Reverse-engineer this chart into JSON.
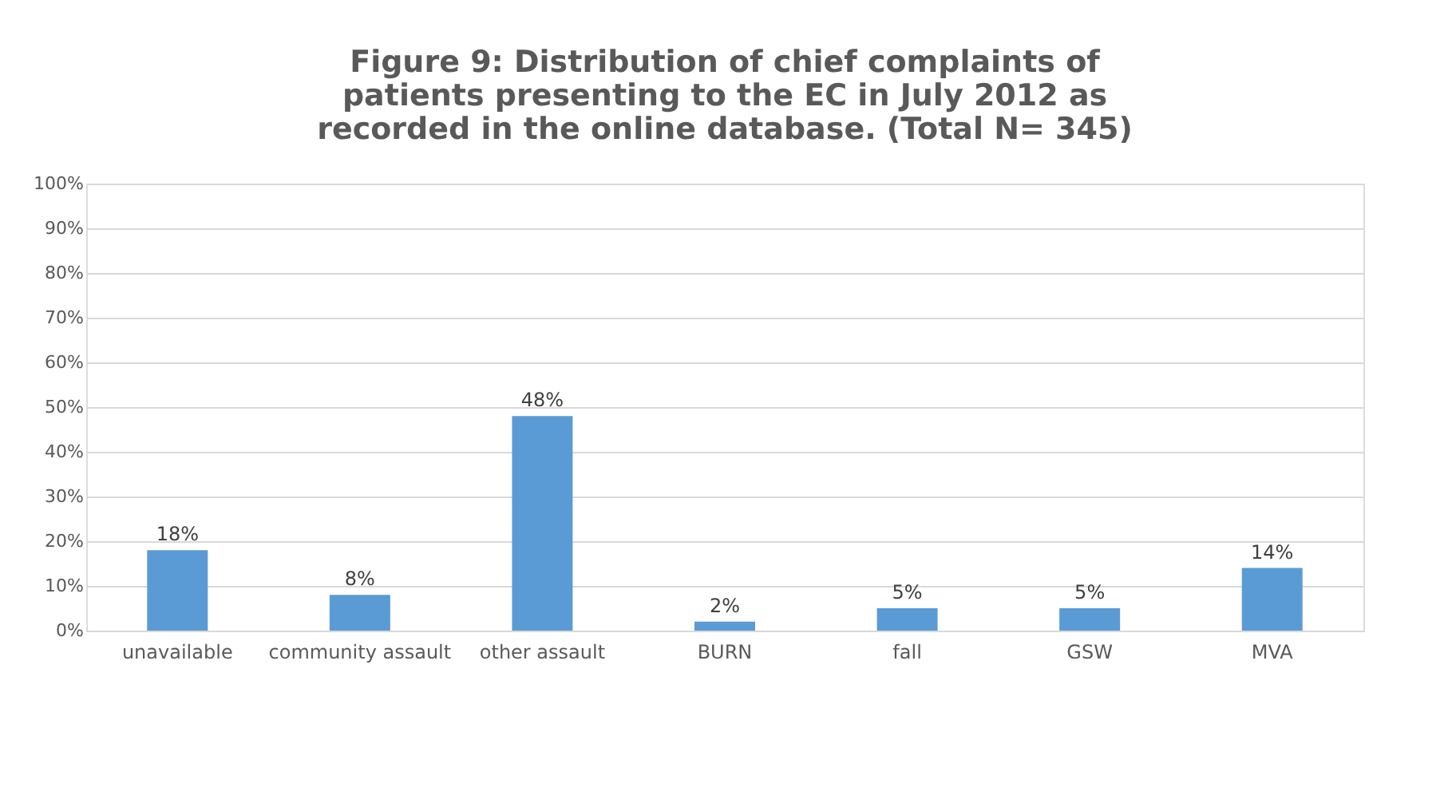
{
  "chart_data": {
    "type": "bar",
    "title": "Figure 9: Distribution of chief complaints of patients presenting to the EC in July 2012 as recorded in the online database. (Total N= 345)",
    "categories": [
      "unavailable",
      "community assault",
      "other assault",
      "BURN",
      "fall",
      "GSW",
      "MVA"
    ],
    "values": [
      18,
      8,
      48,
      2,
      5,
      5,
      14
    ],
    "value_labels": [
      "18%",
      "8%",
      "48%",
      "2%",
      "5%",
      "5%",
      "14%"
    ],
    "color": "#5b9bd5",
    "ylim": [
      0,
      100
    ],
    "yticks": [
      {
        "value": 0,
        "label": "0%"
      },
      {
        "value": 10,
        "label": "10%"
      },
      {
        "value": 20,
        "label": "20%"
      },
      {
        "value": 30,
        "label": "30%"
      },
      {
        "value": 40,
        "label": "40%"
      },
      {
        "value": 50,
        "label": "50%"
      },
      {
        "value": 60,
        "label": "60%"
      },
      {
        "value": 70,
        "label": "70%"
      },
      {
        "value": 80,
        "label": "80%"
      },
      {
        "value": 90,
        "label": "90%"
      },
      {
        "value": 100,
        "label": "100%"
      }
    ],
    "grid": "y"
  }
}
